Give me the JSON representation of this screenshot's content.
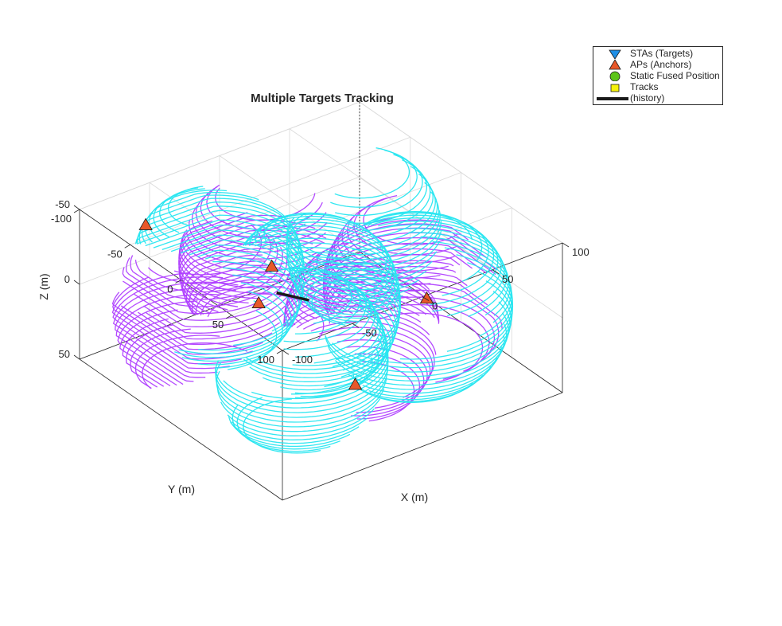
{
  "chart_data": {
    "type": "3d-line",
    "title": "Multiple Targets Tracking",
    "xlabel": "X (m)",
    "ylabel": "Y (m)",
    "zlabel": "Z (m)",
    "x_ticks": [
      "-100",
      "-50",
      "0",
      "50",
      "100"
    ],
    "y_ticks": [
      "-100",
      "-50",
      "0",
      "50",
      "100"
    ],
    "z_ticks": [
      "-50",
      "0",
      "50"
    ],
    "xlim": [
      -100,
      100
    ],
    "ylim": [
      -100,
      100
    ],
    "zlim": [
      -50,
      50
    ],
    "z_direction": "reverse",
    "grid": true,
    "legend_position": "top-right",
    "legend": [
      {
        "label": "STAs (Targets)",
        "marker": "triangle-down",
        "color": "#1f8fe6"
      },
      {
        "label": "APs (Anchors)",
        "marker": "triangle-up",
        "color": "#e8582a"
      },
      {
        "label": "Static Fused Position",
        "marker": "circle",
        "color": "#5cc41a"
      },
      {
        "label": "Tracks",
        "marker": "square",
        "color": "#f5f20a"
      },
      {
        "label": "(history)",
        "marker": "line",
        "color": "#1a1a1a"
      }
    ],
    "anchors": [
      {
        "x": -60,
        "y": -90,
        "z": -30
      },
      {
        "x": -30,
        "y": -20,
        "z": 0
      },
      {
        "x": 30,
        "y": -90,
        "z": 30
      },
      {
        "x": 90,
        "y": -20,
        "z": 40
      },
      {
        "x": 10,
        "y": 20,
        "z": 50
      }
    ],
    "series": [
      {
        "color": "#b040ff",
        "center": [
          -60,
          -30,
          0
        ],
        "radius": 55
      },
      {
        "color": "#b040ff",
        "center": [
          0,
          -55,
          0
        ],
        "radius": 50
      },
      {
        "color": "#b040ff",
        "center": [
          55,
          20,
          0
        ],
        "radius": 55
      },
      {
        "color": "#b040ff",
        "center": [
          0,
          40,
          0
        ],
        "radius": 45
      },
      {
        "color": "#28e6f0",
        "center": [
          -30,
          -60,
          0
        ],
        "radius": 50
      },
      {
        "color": "#28e6f0",
        "center": [
          -5,
          0,
          0
        ],
        "radius": 50
      },
      {
        "color": "#28e6f0",
        "center": [
          40,
          40,
          0
        ],
        "radius": 55
      },
      {
        "color": "#28e6f0",
        "center": [
          -50,
          50,
          0
        ],
        "radius": 50
      },
      {
        "color": "#28e6f0",
        "center": [
          60,
          -40,
          0
        ],
        "radius": 45
      }
    ],
    "history": {
      "color": "#1a1a1a",
      "from": [
        -10,
        -30,
        5
      ],
      "to": [
        -5,
        -5,
        0
      ]
    }
  },
  "colors": {
    "axes": "#262626",
    "grid": "#d9d9d9",
    "purple": "#b040ff",
    "cyan": "#28e6f0",
    "anchor": "#e8582a"
  }
}
